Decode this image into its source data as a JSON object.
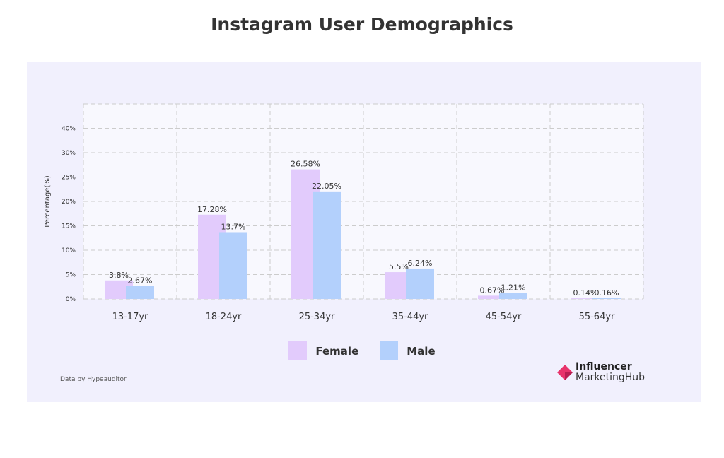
{
  "title": "Instagram User Demographics",
  "source": "Data by Hypeauditor",
  "logo": {
    "line1": "Influencer",
    "line2": "MarketingHub"
  },
  "chart_data": {
    "type": "bar",
    "title": "Instagram User Demographics",
    "ylabel": "Percentage(%)",
    "xlabel": "",
    "yticks": [
      "0%",
      "5%",
      "10%",
      "15%",
      "20%",
      "25%",
      "30%",
      "40%"
    ],
    "categories": [
      "13-17yr",
      "18-24yr",
      "25-34yr",
      "35-44yr",
      "45-54yr",
      "55-64yr"
    ],
    "series": [
      {
        "name": "Female",
        "color": "#e2cbfc",
        "values": [
          3.8,
          17.28,
          26.58,
          5.5,
          0.67,
          0.14
        ],
        "labels": [
          "3.8%",
          "17.28%",
          "26.58%",
          "5.5%",
          "0.67%",
          "0.14%"
        ]
      },
      {
        "name": "Male",
        "color": "#b3d0fc",
        "values": [
          2.67,
          13.7,
          22.05,
          6.24,
          1.21,
          0.16
        ],
        "labels": [
          "2.67%",
          "13.7%",
          "22.05%",
          "6.24%",
          "1.21%",
          "0.16%"
        ]
      }
    ],
    "grid": true,
    "legend": "bottom"
  }
}
